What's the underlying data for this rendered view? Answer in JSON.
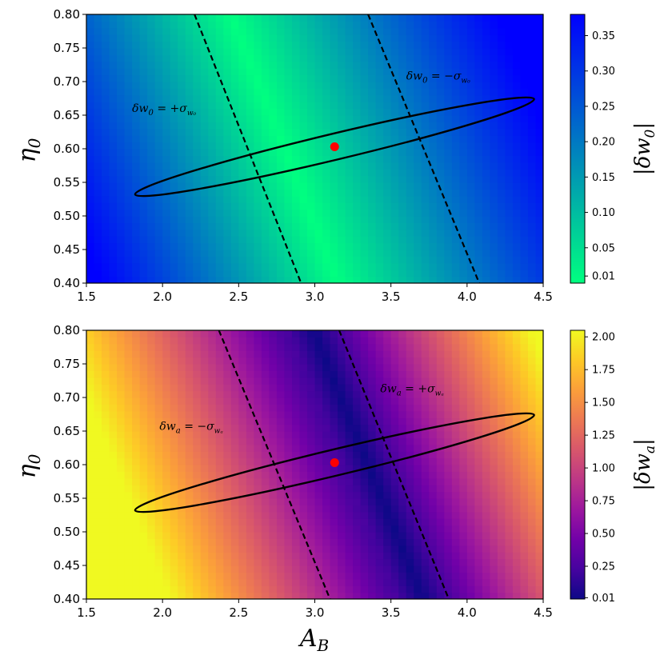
{
  "chart_data": [
    {
      "type": "heatmap",
      "name": "top-panel",
      "xlim": [
        1.5,
        4.5
      ],
      "ylim": [
        0.4,
        0.8
      ],
      "xticks": [
        "1.5",
        "2.0",
        "2.5",
        "3.0",
        "3.5",
        "4.0",
        "4.5"
      ],
      "yticks": [
        "0.40",
        "0.45",
        "0.50",
        "0.55",
        "0.60",
        "0.65",
        "0.70",
        "0.75",
        "0.80"
      ],
      "xlabel": "",
      "ylabel": "η",
      "ylabel_sub": "0",
      "colormap": "winter_r",
      "colorbar": {
        "label": "|δw",
        "label_sub": "0",
        "label_end": "|",
        "range": [
          0.0,
          0.38
        ],
        "ticks": [
          "0.01",
          "0.05",
          "0.10",
          "0.15",
          "0.20",
          "0.25",
          "0.30",
          "0.35"
        ],
        "tick_values": [
          0.01,
          0.05,
          0.1,
          0.15,
          0.2,
          0.25,
          0.3,
          0.35
        ],
        "colors": [
          "#00ff80",
          "#0000ff"
        ]
      },
      "field": {
        "zero_line_x0": 2.6,
        "zero_line_slope": -0.1,
        "max_value": 0.38
      },
      "dashed_lines": [
        {
          "label": "δw",
          "sub": "0",
          "rest": " = +σ",
          "sigma_sub": "w₀",
          "x_at_top": 2.21,
          "x_at_bottom": 2.91
        },
        {
          "label": "δw",
          "sub": "0",
          "rest": " = −σ",
          "sigma_sub": "w₀",
          "x_at_top": 3.35,
          "x_at_bottom": 4.08
        }
      ],
      "annotations": [
        {
          "text_main": "δw",
          "text_sub": "0",
          "text_rest": " = +σ",
          "text_sigma_sub": "w₀",
          "x": 1.8,
          "y": 0.655
        },
        {
          "text_main": "δw",
          "text_sub": "0",
          "text_rest": " = −σ",
          "text_sigma_sub": "w₀",
          "x": 3.6,
          "y": 0.703
        }
      ],
      "ellipse": {
        "center": [
          3.13,
          0.603
        ],
        "end_left": [
          1.82,
          0.532
        ],
        "end_right": [
          4.44,
          0.674
        ],
        "minor_half_width_y": 0.02
      },
      "fiducial_point": {
        "x": 3.13,
        "y": 0.603,
        "color": "#ff0000"
      }
    },
    {
      "type": "heatmap",
      "name": "bottom-panel",
      "xlim": [
        1.5,
        4.5
      ],
      "ylim": [
        0.4,
        0.8
      ],
      "xticks": [
        "1.5",
        "2.0",
        "2.5",
        "3.0",
        "3.5",
        "4.0",
        "4.5"
      ],
      "yticks": [
        "0.40",
        "0.45",
        "0.50",
        "0.55",
        "0.60",
        "0.65",
        "0.70",
        "0.75",
        "0.80"
      ],
      "xlabel": "A",
      "xlabel_sub": "B",
      "ylabel": "η",
      "ylabel_sub": "0",
      "colormap": "plasma",
      "colorbar": {
        "label": "|δw",
        "label_sub": "a",
        "label_end": "|",
        "range": [
          0.0,
          2.05
        ],
        "ticks": [
          "0.01",
          "0.25",
          "0.50",
          "0.75",
          "1.00",
          "1.25",
          "1.50",
          "1.75",
          "2.00"
        ],
        "tick_values": [
          0.01,
          0.25,
          0.5,
          0.75,
          1.0,
          1.25,
          1.5,
          1.75,
          2.0
        ],
        "colors": [
          "#0d0887",
          "#46039f",
          "#7201a8",
          "#9c179e",
          "#bd3786",
          "#d8576b",
          "#ed7953",
          "#fb9f3a",
          "#fdca26",
          "#f0f921"
        ]
      },
      "field": {
        "zero_line_x0": 3.15,
        "zero_line_slope": -0.1,
        "max_value": 2.05
      },
      "dashed_lines": [
        {
          "label": "δw",
          "sub": "a",
          "rest": " = −σ",
          "sigma_sub": "wₐ",
          "x_at_top": 2.37,
          "x_at_bottom": 3.1
        },
        {
          "label": "δw",
          "sub": "a",
          "rest": " = +σ",
          "sigma_sub": "wₐ",
          "x_at_top": 3.16,
          "x_at_bottom": 3.88
        }
      ],
      "annotations": [
        {
          "text_main": "δw",
          "text_sub": "a",
          "text_rest": " = −σ",
          "text_sigma_sub": "wₐ",
          "x": 1.98,
          "y": 0.652
        },
        {
          "text_main": "δw",
          "text_sub": "a",
          "text_rest": " = +σ",
          "text_sigma_sub": "wₐ",
          "x": 3.43,
          "y": 0.708
        }
      ],
      "ellipse": {
        "center": [
          3.13,
          0.603
        ],
        "end_left": [
          1.82,
          0.532
        ],
        "end_right": [
          4.44,
          0.674
        ],
        "minor_half_width_y": 0.02
      },
      "fiducial_point": {
        "x": 3.13,
        "y": 0.603,
        "color": "#ff0000"
      }
    }
  ]
}
